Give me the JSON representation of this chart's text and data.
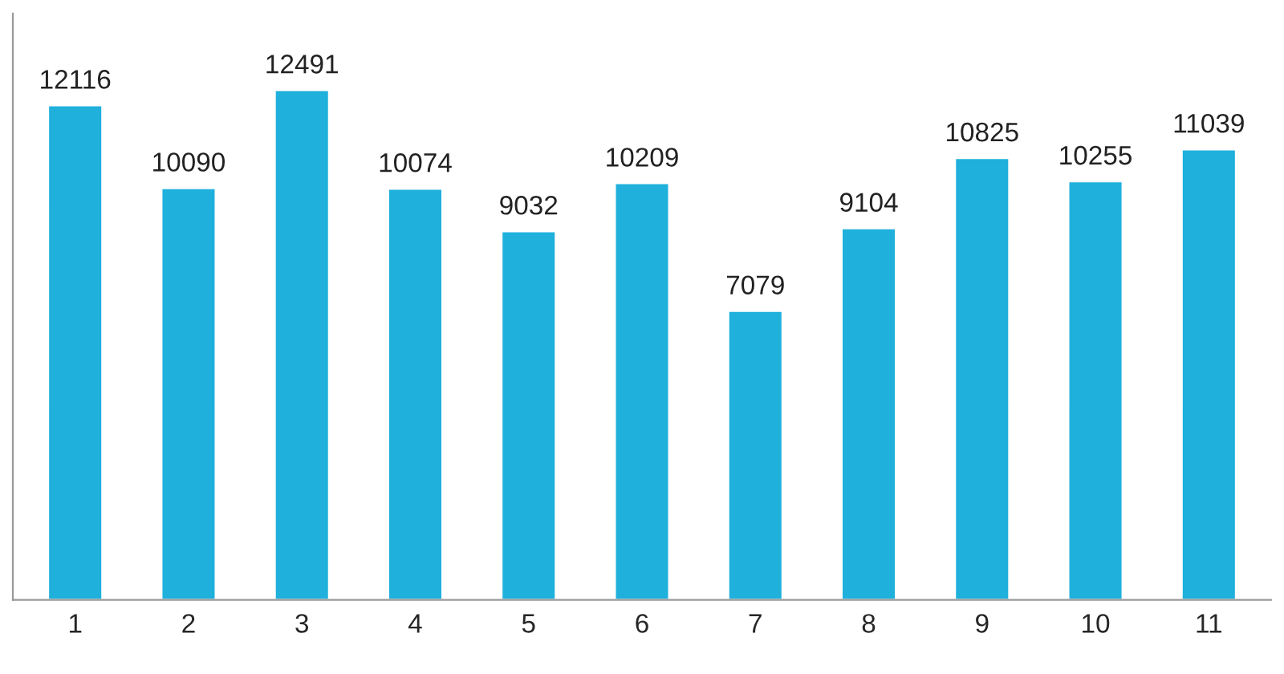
{
  "chart_data": {
    "type": "bar",
    "categories": [
      "1",
      "2",
      "3",
      "4",
      "5",
      "6",
      "7",
      "8",
      "9",
      "10",
      "11"
    ],
    "values": [
      12116,
      10090,
      12491,
      10074,
      9032,
      10209,
      7079,
      9104,
      10825,
      10255,
      11039
    ],
    "color": "#1fb0dc",
    "data_labels": true,
    "grid": false,
    "legend": false
  }
}
